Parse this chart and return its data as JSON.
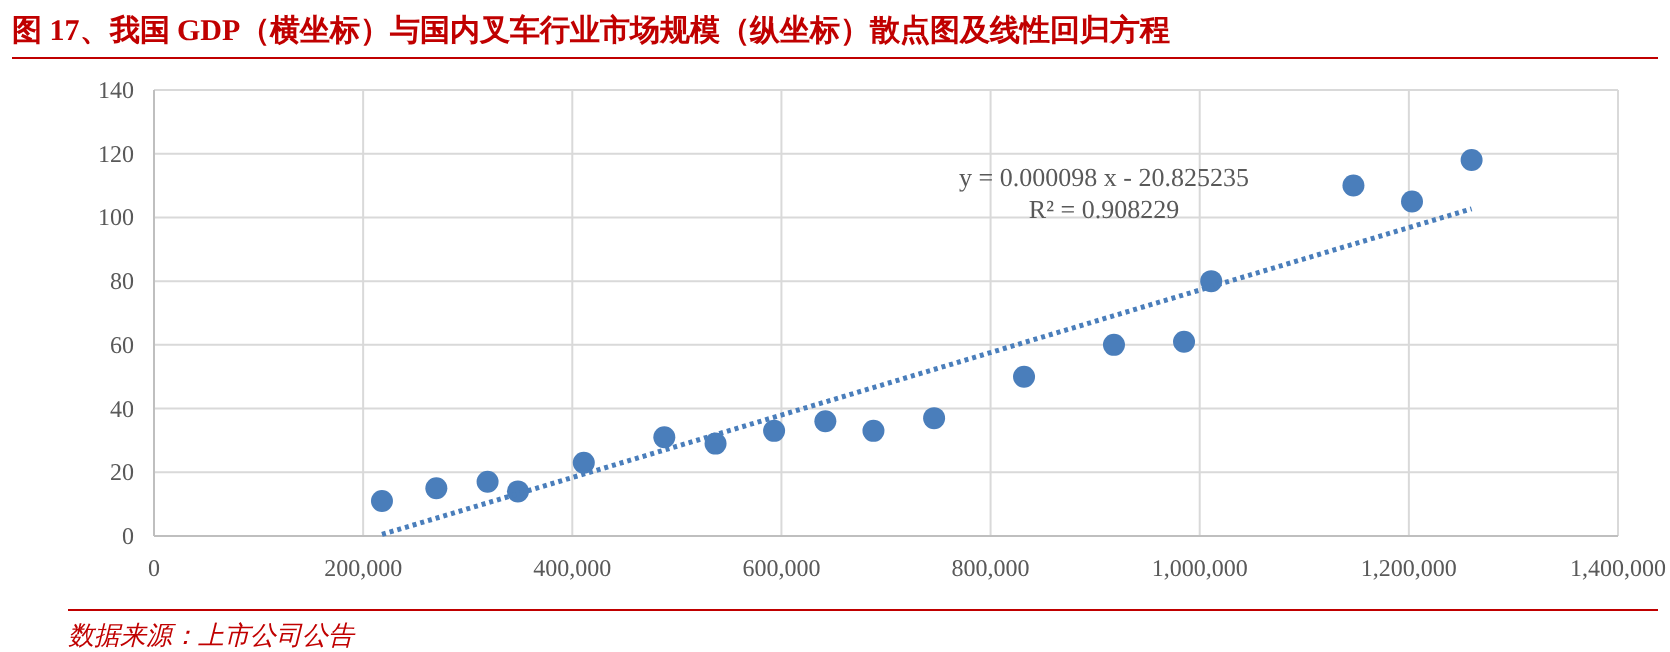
{
  "chart_data": {
    "type": "scatter",
    "title": "图 17、我国 GDP（横坐标）与国内叉车行业市场规模（纵坐标）散点图及线性回归方程",
    "annotations": [
      "y = 0.000098 x - 20.825235",
      "R² = 0.908229",
      "数据来源：上市公司公告"
    ],
    "xlim": [
      0,
      1400000
    ],
    "ylim": [
      0,
      140
    ],
    "xticks": [
      {
        "value": 0,
        "label": "0"
      },
      {
        "value": 200000,
        "label": "200,000"
      },
      {
        "value": 400000,
        "label": "400,000"
      },
      {
        "value": 600000,
        "label": "600,000"
      },
      {
        "value": 800000,
        "label": "800,000"
      },
      {
        "value": 1000000,
        "label": "1,000,000"
      },
      {
        "value": 1200000,
        "label": "1,200,000"
      },
      {
        "value": 1400000,
        "label": "1,400,000"
      }
    ],
    "yticks": [
      0,
      20,
      40,
      60,
      80,
      100,
      120,
      140
    ],
    "grid": true,
    "marker": "circle",
    "series": [
      {
        "color": "#4a7ebb",
        "x": [
          218000,
          270000,
          319000,
          348000,
          411000,
          488000,
          537000,
          593000,
          642000,
          688000,
          746000,
          832000,
          918000,
          985000,
          1011000,
          1147000,
          1203000,
          1260000
        ],
        "values": [
          11,
          15,
          17,
          14,
          23,
          31,
          29,
          33,
          36,
          33,
          37,
          50,
          60,
          61,
          80,
          110,
          105,
          118
        ]
      },
      {
        "type": "line",
        "line_style": "dotted",
        "marker": "none",
        "color": "#4a7ebb",
        "x": [
          218000,
          1260000
        ],
        "values": [
          0.5,
          102.7
        ]
      }
    ]
  }
}
